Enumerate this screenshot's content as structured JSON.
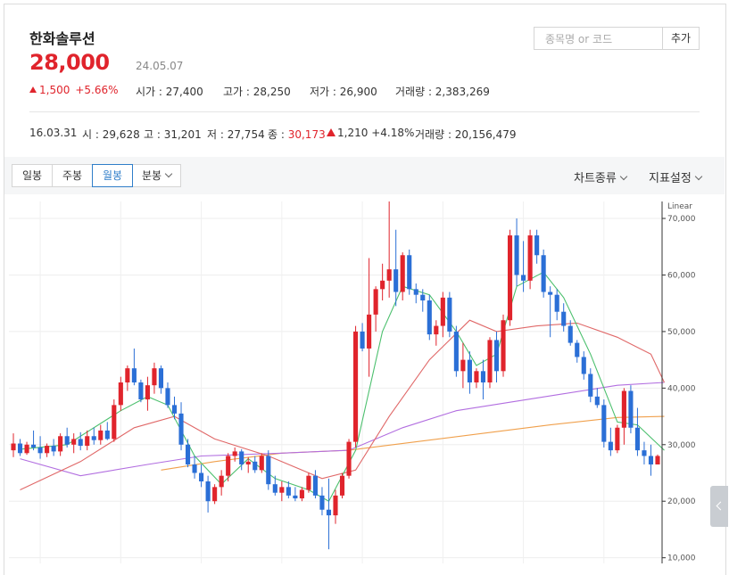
{
  "stock": {
    "name": "한화솔루션",
    "price": "28,000",
    "date": "24.05.07",
    "change": "1,500",
    "change_pct": "+5.66%",
    "open_label": "시가",
    "open": "27,400",
    "high_label": "고가",
    "high": "28,250",
    "low_label": "저가",
    "low": "26,900",
    "volume_label": "거래량",
    "volume": "2,383,269"
  },
  "search": {
    "placeholder": "종목명 or 코드",
    "add_label": "추가"
  },
  "history": {
    "date": "16.03.31",
    "open_label": "시",
    "open": "29,628",
    "high_label": "고",
    "high": "31,201",
    "low_label": "저",
    "low": "27,754",
    "close_label": "종",
    "close": "30,173",
    "change": "1,210",
    "change_pct": "+4.18%",
    "volume_label": "거래량",
    "volume": "20,156,479"
  },
  "toolbar": {
    "periods": [
      "일봉",
      "주봉",
      "월봉",
      "분봉"
    ],
    "active_period": "월봉",
    "chart_type_label": "차트종류",
    "indicator_label": "지표설정"
  },
  "icons": {
    "search_add": "add-button",
    "dropdown": "chevron-down-icon",
    "side": "chevron-left-icon"
  },
  "colors": {
    "up": "#e0242c",
    "down": "#2b6fd6",
    "ma5": "#4cc06e",
    "ma20": "#e06868",
    "ma60": "#b26ee0",
    "ma120": "#f0a04c",
    "accent": "#2f7ec9"
  },
  "chart_data": {
    "type": "candlestick",
    "scale_label": "Linear",
    "ylim": [
      9000,
      73000
    ],
    "yticks": [
      "10,000",
      "20,000",
      "30,000",
      "40,000",
      "50,000",
      "60,000",
      "70,000"
    ],
    "ytick_values": [
      10000,
      20000,
      30000,
      40000,
      50000,
      60000,
      70000
    ],
    "candles": [
      [
        29000,
        32000,
        27800,
        30200
      ],
      [
        30200,
        31000,
        28000,
        28500
      ],
      [
        28500,
        30500,
        28200,
        30000
      ],
      [
        30000,
        32500,
        29000,
        29500
      ],
      [
        29500,
        31500,
        27500,
        28500
      ],
      [
        28500,
        30200,
        27800,
        29800
      ],
      [
        29800,
        31000,
        28000,
        28800
      ],
      [
        28800,
        32000,
        28000,
        31500
      ],
      [
        31500,
        33000,
        29500,
        30000
      ],
      [
        30000,
        32000,
        28500,
        31000
      ],
      [
        31000,
        32200,
        29000,
        29800
      ],
      [
        29800,
        32500,
        29000,
        31500
      ],
      [
        31500,
        33000,
        30000,
        30800
      ],
      [
        30800,
        33500,
        30000,
        32500
      ],
      [
        32500,
        34000,
        30800,
        31000
      ],
      [
        31000,
        38000,
        30500,
        37000
      ],
      [
        37000,
        42000,
        36000,
        41000
      ],
      [
        41000,
        44000,
        39500,
        43500
      ],
      [
        43500,
        47000,
        40500,
        41000
      ],
      [
        41000,
        41500,
        37500,
        38000
      ],
      [
        38000,
        42000,
        36000,
        40500
      ],
      [
        40500,
        44500,
        39000,
        43500
      ],
      [
        43500,
        44000,
        39000,
        40000
      ],
      [
        40000,
        41000,
        36500,
        37000
      ],
      [
        37000,
        38500,
        34500,
        35500
      ],
      [
        35500,
        37500,
        29000,
        30000
      ],
      [
        30000,
        31000,
        26000,
        26500
      ],
      [
        26500,
        28000,
        24000,
        25000
      ],
      [
        25000,
        26500,
        22500,
        23500
      ],
      [
        23500,
        24500,
        18000,
        20000
      ],
      [
        20000,
        23000,
        19500,
        22500
      ],
      [
        22500,
        25500,
        21000,
        24500
      ],
      [
        24500,
        28500,
        23500,
        28000
      ],
      [
        28000,
        29500,
        27000,
        28800
      ],
      [
        28800,
        29200,
        25500,
        26500
      ],
      [
        26500,
        27800,
        25000,
        27000
      ],
      [
        27000,
        28000,
        25000,
        25500
      ],
      [
        25500,
        28500,
        25000,
        28000
      ],
      [
        28000,
        29000,
        22000,
        23000
      ],
      [
        23000,
        24500,
        21000,
        21500
      ],
      [
        21500,
        23500,
        20000,
        22500
      ],
      [
        22500,
        23500,
        20500,
        21000
      ],
      [
        21000,
        22500,
        20000,
        20500
      ],
      [
        20500,
        22500,
        20000,
        22000
      ],
      [
        22000,
        25000,
        21500,
        24500
      ],
      [
        24500,
        25500,
        20500,
        21000
      ],
      [
        21000,
        22500,
        17500,
        18500
      ],
      [
        18500,
        24000,
        11500,
        17500
      ],
      [
        17500,
        22000,
        16000,
        21000
      ],
      [
        21000,
        25000,
        20500,
        24500
      ],
      [
        24500,
        31000,
        24000,
        30500
      ],
      [
        30500,
        51000,
        29500,
        50000
      ],
      [
        50000,
        51500,
        46500,
        47000
      ],
      [
        47000,
        63000,
        42000,
        53000
      ],
      [
        53000,
        58000,
        50000,
        57500
      ],
      [
        57500,
        62000,
        55500,
        59000
      ],
      [
        59000,
        73000,
        56000,
        61000
      ],
      [
        61000,
        68000,
        54500,
        57000
      ],
      [
        57000,
        64000,
        55500,
        63500
      ],
      [
        63500,
        64500,
        56500,
        57500
      ],
      [
        57500,
        58500,
        55000,
        56500
      ],
      [
        56500,
        57500,
        53500,
        55500
      ],
      [
        55500,
        56500,
        48500,
        49500
      ],
      [
        49500,
        52000,
        47500,
        51000
      ],
      [
        51000,
        57000,
        49000,
        56000
      ],
      [
        56000,
        57000,
        49000,
        50000
      ],
      [
        50000,
        51000,
        42000,
        43000
      ],
      [
        43000,
        48000,
        40000,
        45000
      ],
      [
        45000,
        46500,
        39000,
        41000
      ],
      [
        41000,
        43500,
        40000,
        43000
      ],
      [
        43000,
        45000,
        38000,
        41000
      ],
      [
        41000,
        49000,
        40000,
        48500
      ],
      [
        48500,
        50000,
        41000,
        43000
      ],
      [
        43000,
        53000,
        42000,
        52000
      ],
      [
        52000,
        68000,
        51000,
        67000
      ],
      [
        67000,
        70000,
        58000,
        60000
      ],
      [
        60000,
        66000,
        57000,
        59000
      ],
      [
        59000,
        68000,
        57500,
        67000
      ],
      [
        67000,
        68000,
        62000,
        63500
      ],
      [
        63500,
        64500,
        56000,
        57000
      ],
      [
        57000,
        58000,
        49000,
        56500
      ],
      [
        56500,
        57500,
        52000,
        53500
      ],
      [
        53500,
        55000,
        50000,
        51000
      ],
      [
        51000,
        52000,
        47500,
        48000
      ],
      [
        48000,
        48500,
        44500,
        45500
      ],
      [
        45500,
        46500,
        41500,
        42500
      ],
      [
        42500,
        43500,
        37500,
        38500
      ],
      [
        38500,
        40000,
        36500,
        37000
      ],
      [
        37000,
        38000,
        29500,
        30500
      ],
      [
        30500,
        33000,
        28000,
        29000
      ],
      [
        29000,
        33500,
        28500,
        33000
      ],
      [
        33000,
        40000,
        30000,
        39500
      ],
      [
        39500,
        40500,
        32000,
        33000
      ],
      [
        33000,
        36500,
        28000,
        29000
      ],
      [
        29000,
        30500,
        26500,
        28000
      ],
      [
        28000,
        30000,
        24500,
        26500
      ],
      [
        26500,
        28250,
        26500,
        28000
      ]
    ],
    "ma5": [
      [
        1,
        29200
      ],
      [
        8,
        30000
      ],
      [
        16,
        36000
      ],
      [
        20,
        38500
      ],
      [
        23,
        37000
      ],
      [
        27,
        28000
      ],
      [
        31,
        23000
      ],
      [
        35,
        27500
      ],
      [
        39,
        24000
      ],
      [
        44,
        22000
      ],
      [
        47,
        20000
      ],
      [
        51,
        29000
      ],
      [
        55,
        50000
      ],
      [
        58,
        58000
      ],
      [
        62,
        56500
      ],
      [
        66,
        50000
      ],
      [
        69,
        44000
      ],
      [
        72,
        46000
      ],
      [
        75,
        58000
      ],
      [
        79,
        60500
      ],
      [
        82,
        56000
      ],
      [
        86,
        46000
      ],
      [
        90,
        34000
      ],
      [
        93,
        33500
      ],
      [
        97,
        29000
      ]
    ],
    "ma20": [
      [
        1,
        22000
      ],
      [
        10,
        27000
      ],
      [
        18,
        33000
      ],
      [
        24,
        35000
      ],
      [
        30,
        31000
      ],
      [
        38,
        28000
      ],
      [
        46,
        24000
      ],
      [
        51,
        25500
      ],
      [
        56,
        35000
      ],
      [
        62,
        45000
      ],
      [
        68,
        52000
      ],
      [
        72,
        50000
      ],
      [
        78,
        51000
      ],
      [
        84,
        51500
      ],
      [
        90,
        49000
      ],
      [
        95,
        46000
      ],
      [
        97,
        41000
      ]
    ],
    "ma60": [
      [
        1,
        27500
      ],
      [
        10,
        24500
      ],
      [
        20,
        26500
      ],
      [
        28,
        28000
      ],
      [
        40,
        28500
      ],
      [
        50,
        29000
      ],
      [
        58,
        33000
      ],
      [
        66,
        36000
      ],
      [
        74,
        37500
      ],
      [
        82,
        39000
      ],
      [
        90,
        40500
      ],
      [
        97,
        41000
      ]
    ],
    "ma120": [
      [
        22,
        25500
      ],
      [
        30,
        27000
      ],
      [
        40,
        28500
      ],
      [
        50,
        29000
      ],
      [
        60,
        30500
      ],
      [
        70,
        32000
      ],
      [
        80,
        33500
      ],
      [
        90,
        34800
      ],
      [
        97,
        35000
      ]
    ]
  }
}
